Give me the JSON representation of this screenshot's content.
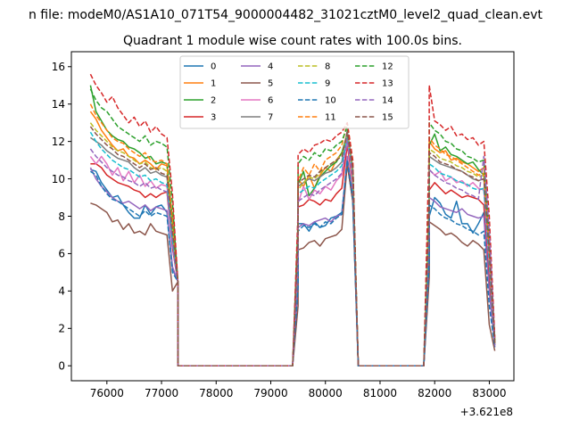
{
  "figure": {
    "suptitle": "n file: modeM0/AS1A10_071T54_9000004482_31021cztM0_level2_quad_clean.evt"
  },
  "chart_data": {
    "type": "line",
    "title": "Quadrant 1 module wise count rates with 100.0s bins.",
    "xlabel": "",
    "ylabel": "",
    "x_offset_label": "+3.621e8",
    "xlim": [
      75350,
      83450
    ],
    "ylim": [
      -0.8,
      16.8
    ],
    "xticks": [
      76000,
      77000,
      78000,
      79000,
      80000,
      81000,
      82000,
      83000
    ],
    "xtick_labels": [
      "76000",
      "77000",
      "78000",
      "79000",
      "80000",
      "81000",
      "82000",
      "83000"
    ],
    "yticks": [
      0,
      2,
      4,
      6,
      8,
      10,
      12,
      14,
      16
    ],
    "ytick_labels": [
      "0",
      "2",
      "4",
      "6",
      "8",
      "10",
      "12",
      "14",
      "16"
    ],
    "grid": false,
    "legend_position": "top-center",
    "legend_columns": 4,
    "segments": [
      {
        "start": 75700,
        "n": 15
      },
      {
        "start": 77200,
        "n": 2
      },
      {
        "start": 77300,
        "n": 21
      },
      {
        "start": 79400,
        "n": 2
      },
      {
        "start": 79500,
        "n": 10
      },
      {
        "start": 80500,
        "n": 2
      },
      {
        "start": 80600,
        "n": 12
      },
      {
        "start": 81800,
        "n": 2
      },
      {
        "start": 81900,
        "n": 11
      },
      {
        "start": 83000,
        "n": 2
      }
    ],
    "series": [
      {
        "name": "0",
        "color": "#1f77b4",
        "dash": "solid",
        "seg1": [
          10.5,
          10.4,
          9.8,
          9.4,
          9.0,
          9.1,
          8.6,
          8.2,
          7.9,
          7.9,
          8.6,
          8.1,
          8.5,
          8.6,
          8.2
        ],
        "seg2": [
          7.6,
          7.6,
          7.2,
          7.7,
          7.4,
          7.5,
          7.9,
          8.0,
          8.2,
          10.8
        ],
        "seg3": [
          8.0,
          9.0,
          8.7,
          8.1,
          7.9,
          8.8,
          7.6,
          7.6,
          7.1,
          7.6,
          8.2
        ],
        "end": 1.2
      },
      {
        "name": "1",
        "color": "#ff7f0e",
        "dash": "solid",
        "seg1": [
          13.6,
          13.2,
          12.6,
          12.2,
          11.8,
          11.5,
          11.6,
          11.2,
          11.1,
          10.8,
          11.0,
          10.8,
          10.5,
          10.8,
          10.7
        ],
        "seg2": [
          10.0,
          9.6,
          10.2,
          9.5,
          10.2,
          10.6,
          10.4,
          11.0,
          11.4,
          12.2
        ],
        "seg3": [
          12.0,
          11.6,
          11.4,
          11.5,
          11.0,
          11.1,
          10.9,
          10.8,
          10.6,
          10.4,
          10.6
        ],
        "end": 1.3
      },
      {
        "name": "2",
        "color": "#2ca02c",
        "dash": "solid",
        "seg1": [
          15.0,
          13.6,
          13.1,
          12.6,
          12.3,
          12.1,
          12.0,
          11.7,
          11.6,
          11.4,
          11.1,
          11.2,
          10.8,
          10.9,
          10.8
        ],
        "seg2": [
          9.7,
          10.4,
          9.1,
          9.5,
          10.1,
          10.4,
          10.7,
          10.9,
          11.4,
          12.4
        ],
        "seg3": [
          11.8,
          12.4,
          11.5,
          11.7,
          11.3,
          11.2,
          11.0,
          10.8,
          10.9,
          10.5,
          10.2
        ],
        "end": 1.3
      },
      {
        "name": "3",
        "color": "#d62728",
        "dash": "solid",
        "seg1": [
          10.8,
          10.8,
          10.6,
          10.2,
          10.0,
          9.8,
          9.7,
          9.6,
          9.4,
          9.3,
          9.0,
          9.2,
          9.0,
          9.2,
          9.3
        ],
        "seg2": [
          8.5,
          8.6,
          8.9,
          8.8,
          8.6,
          8.9,
          8.8,
          9.2,
          9.5,
          11.8
        ],
        "seg3": [
          9.4,
          9.8,
          9.5,
          9.2,
          9.4,
          9.2,
          9.0,
          9.1,
          9.0,
          8.9,
          8.6
        ],
        "end": 1.1
      },
      {
        "name": "4",
        "color": "#9467bd",
        "dash": "solid",
        "seg1": [
          10.6,
          10.0,
          9.6,
          9.3,
          9.0,
          8.8,
          8.7,
          8.8,
          8.6,
          8.4,
          8.6,
          8.3,
          8.5,
          8.4,
          8.3
        ],
        "seg2": [
          7.4,
          7.6,
          7.5,
          7.7,
          7.8,
          7.9,
          7.7,
          8.0,
          8.1,
          11.2
        ],
        "seg3": [
          9.0,
          8.8,
          8.5,
          8.4,
          8.3,
          8.2,
          8.4,
          8.1,
          8.0,
          7.9,
          8.0
        ],
        "end": 1.0
      },
      {
        "name": "5",
        "color": "#8c564b",
        "dash": "solid",
        "seg1": [
          8.7,
          8.6,
          8.4,
          8.2,
          7.7,
          7.8,
          7.3,
          7.6,
          7.1,
          7.2,
          7.0,
          7.6,
          7.2,
          7.1,
          7.0
        ],
        "seg2": [
          6.2,
          6.3,
          6.6,
          6.7,
          6.4,
          6.8,
          6.9,
          7.0,
          7.3,
          10.8
        ],
        "seg3": [
          7.7,
          7.5,
          7.3,
          7.0,
          7.1,
          6.9,
          6.6,
          6.4,
          6.7,
          6.5,
          6.2
        ],
        "end": 0.8
      },
      {
        "name": "6",
        "color": "#e377c2",
        "dash": "solid",
        "seg1": [
          11.2,
          10.8,
          11.2,
          10.8,
          10.2,
          10.6,
          9.9,
          10.4,
          9.8,
          10.2,
          9.6,
          9.9,
          9.5,
          9.7,
          9.6
        ],
        "seg2": [
          8.7,
          9.6,
          8.9,
          9.4,
          9.2,
          9.6,
          9.4,
          9.9,
          10.2,
          12.0
        ],
        "seg3": [
          10.5,
          10.2,
          10.4,
          9.9,
          10.1,
          9.8,
          9.9,
          9.6,
          9.8,
          9.5,
          9.4
        ],
        "end": 1.2
      },
      {
        "name": "7",
        "color": "#7f7f7f",
        "dash": "solid",
        "seg1": [
          12.2,
          12.0,
          11.8,
          11.5,
          11.3,
          11.1,
          11.0,
          10.9,
          10.6,
          10.4,
          10.6,
          10.3,
          10.4,
          10.2,
          10.1
        ],
        "seg2": [
          9.6,
          9.8,
          10.0,
          9.9,
          10.1,
          10.3,
          10.4,
          10.6,
          10.9,
          12.6
        ],
        "seg3": [
          11.2,
          11.0,
          10.8,
          10.7,
          10.6,
          10.5,
          10.4,
          10.2,
          10.0,
          9.9,
          10.0
        ],
        "end": 1.2
      },
      {
        "name": "8",
        "color": "#bcbd22",
        "dash": "dashed",
        "seg1": [
          13.0,
          12.6,
          12.3,
          12.0,
          11.7,
          11.5,
          11.4,
          11.2,
          11.0,
          10.8,
          10.9,
          10.6,
          10.5,
          10.6,
          10.4
        ],
        "seg2": [
          9.4,
          9.8,
          10.1,
          10.0,
          10.3,
          10.6,
          10.8,
          11.0,
          11.3,
          12.3
        ],
        "seg3": [
          11.6,
          11.4,
          11.1,
          11.0,
          10.9,
          10.7,
          10.6,
          10.4,
          10.3,
          10.1,
          10.2
        ],
        "end": 1.2
      },
      {
        "name": "9",
        "color": "#17becf",
        "dash": "dashed",
        "seg1": [
          12.5,
          12.0,
          11.6,
          11.3,
          11.0,
          10.8,
          10.6,
          10.5,
          10.3,
          10.1,
          10.2,
          9.9,
          10.0,
          9.8,
          9.7
        ],
        "seg2": [
          9.2,
          9.4,
          9.6,
          9.5,
          9.8,
          10.0,
          10.2,
          10.4,
          10.7,
          12.2
        ],
        "seg3": [
          10.8,
          10.6,
          10.3,
          10.2,
          10.1,
          9.9,
          9.8,
          9.7,
          9.5,
          9.4,
          9.5
        ],
        "end": 1.1
      },
      {
        "name": "10",
        "color": "#1f77b4",
        "dash": "dashed",
        "seg1": [
          10.4,
          10.2,
          9.6,
          9.2,
          8.9,
          8.8,
          8.6,
          8.4,
          8.2,
          8.0,
          8.3,
          8.0,
          8.2,
          8.1,
          8.0
        ],
        "seg2": [
          7.2,
          7.5,
          7.4,
          7.6,
          7.4,
          7.7,
          7.6,
          7.9,
          8.1,
          11.0
        ],
        "seg3": [
          8.6,
          8.4,
          8.1,
          7.9,
          7.8,
          7.6,
          7.5,
          7.3,
          7.2,
          7.0,
          7.2
        ],
        "end": 1.0
      },
      {
        "name": "11",
        "color": "#ff7f0e",
        "dash": "dashed",
        "seg1": [
          14.0,
          13.4,
          13.0,
          12.6,
          12.2,
          12.0,
          11.9,
          11.6,
          11.4,
          11.2,
          11.4,
          11.0,
          10.9,
          11.0,
          10.8
        ],
        "seg2": [
          9.9,
          10.6,
          10.2,
          10.8,
          10.4,
          11.0,
          11.2,
          11.4,
          11.8,
          13.0
        ],
        "seg3": [
          12.2,
          11.8,
          11.6,
          11.3,
          11.2,
          11.0,
          10.8,
          10.6,
          10.4,
          10.2,
          10.3
        ],
        "end": 1.3
      },
      {
        "name": "12",
        "color": "#2ca02c",
        "dash": "dashed",
        "seg1": [
          14.8,
          14.2,
          13.8,
          13.6,
          13.2,
          12.8,
          12.6,
          12.4,
          12.2,
          12.0,
          12.3,
          11.8,
          12.0,
          11.9,
          11.7
        ],
        "seg2": [
          10.8,
          11.2,
          11.0,
          11.4,
          11.2,
          11.6,
          11.5,
          11.8,
          12.0,
          12.8
        ],
        "seg3": [
          13.0,
          12.6,
          12.4,
          12.0,
          11.9,
          11.6,
          11.5,
          11.2,
          11.1,
          10.9,
          11.0
        ],
        "end": 1.4
      },
      {
        "name": "13",
        "color": "#d62728",
        "dash": "dashed",
        "seg1": [
          15.6,
          15.0,
          14.6,
          14.1,
          14.4,
          13.8,
          13.4,
          13.0,
          13.3,
          12.8,
          13.1,
          12.5,
          12.8,
          12.4,
          12.2
        ],
        "seg2": [
          11.3,
          11.6,
          11.4,
          11.8,
          11.9,
          12.1,
          12.0,
          12.3,
          12.5,
          13.0
        ],
        "seg3": [
          15.0,
          13.1,
          12.9,
          12.6,
          12.8,
          12.3,
          12.4,
          12.1,
          12.2,
          11.8,
          12.0
        ],
        "end": 1.5
      },
      {
        "name": "14",
        "color": "#9467bd",
        "dash": "dashed",
        "seg1": [
          11.6,
          11.2,
          10.9,
          10.6,
          10.4,
          10.2,
          10.1,
          9.9,
          9.8,
          9.6,
          9.8,
          9.5,
          9.6,
          9.4,
          9.3
        ],
        "seg2": [
          8.8,
          9.0,
          9.2,
          9.1,
          9.4,
          9.6,
          9.8,
          10.0,
          10.3,
          12.1
        ],
        "seg3": [
          10.5,
          10.2,
          10.0,
          9.8,
          9.7,
          9.5,
          9.4,
          9.2,
          9.1,
          8.9,
          11.2
        ],
        "end": 1.1
      },
      {
        "name": "15",
        "color": "#8c564b",
        "dash": "dashed",
        "seg1": [
          12.8,
          12.4,
          12.1,
          11.8,
          11.6,
          11.3,
          11.2,
          11.0,
          10.8,
          10.6,
          10.8,
          10.5,
          10.6,
          10.3,
          10.2
        ],
        "seg2": [
          9.8,
          10.0,
          10.2,
          10.1,
          10.4,
          10.6,
          10.8,
          11.0,
          11.2,
          12.5
        ],
        "seg3": [
          11.4,
          11.2,
          10.9,
          10.8,
          10.7,
          10.5,
          10.4,
          10.2,
          10.1,
          9.9,
          10.0
        ],
        "end": 1.2
      }
    ]
  }
}
